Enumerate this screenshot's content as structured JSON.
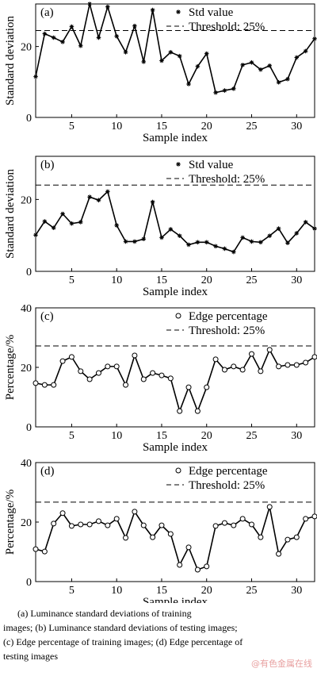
{
  "chart_data": [
    {
      "type": "line",
      "panel_label": "(a)",
      "xlabel": "Sample index",
      "ylabel": "Standard deviation",
      "x": [
        1,
        2,
        3,
        4,
        5,
        6,
        7,
        8,
        9,
        10,
        11,
        12,
        13,
        14,
        15,
        16,
        17,
        18,
        19,
        20,
        21,
        22,
        23,
        24,
        25,
        26,
        27,
        28,
        29,
        30,
        31,
        32
      ],
      "xlim": [
        1,
        32
      ],
      "xticks": [
        5,
        10,
        15,
        20,
        25,
        30
      ],
      "ylim": [
        0,
        32
      ],
      "yticks": [
        0,
        20
      ],
      "series": [
        {
          "name": "Std value",
          "color": "#000000",
          "marker": "asterisk",
          "values": [
            11.5,
            23.6,
            22.5,
            21.3,
            25.6,
            20.2,
            32,
            22.5,
            31.2,
            22.9,
            18.4,
            25.8,
            15.7,
            30.3,
            16,
            18.4,
            17.3,
            9.4,
            14.4,
            18,
            7,
            7.6,
            8.1,
            14.8,
            15.5,
            13.5,
            14.6,
            9.9,
            10.8,
            16.9,
            18.7,
            22.2
          ]
        }
      ],
      "threshold": {
        "name": "Threshold: 25%",
        "value": 24.5
      }
    },
    {
      "type": "line",
      "panel_label": "(b)",
      "xlabel": "Sample index",
      "ylabel": "Standard deviation",
      "x": [
        1,
        2,
        3,
        4,
        5,
        6,
        7,
        8,
        9,
        10,
        11,
        12,
        13,
        14,
        15,
        16,
        17,
        18,
        19,
        20,
        21,
        22,
        23,
        24,
        25,
        26,
        27,
        28,
        29,
        30,
        31,
        32
      ],
      "xlim": [
        1,
        32
      ],
      "xticks": [
        5,
        10,
        15,
        20,
        25,
        30
      ],
      "ylim": [
        0,
        32
      ],
      "yticks": [
        0,
        20
      ],
      "series": [
        {
          "name": "Std value",
          "color": "#000000",
          "marker": "asterisk",
          "values": [
            10.1,
            13.9,
            12.1,
            16,
            13.3,
            13.7,
            20.7,
            19.8,
            22.2,
            12.8,
            8.3,
            8.3,
            9,
            19.3,
            9.4,
            11.7,
            9.9,
            7.4,
            8.1,
            8.1,
            7,
            6.3,
            5.4,
            9.4,
            8.3,
            8.1,
            9.9,
            11.9,
            7.9,
            10.6,
            13.7,
            11.9
          ]
        }
      ],
      "threshold": {
        "name": "Threshold: 25%",
        "value": 24
      }
    },
    {
      "type": "line",
      "panel_label": "(c)",
      "xlabel": "Sample index",
      "ylabel": "Percentage/%",
      "x": [
        1,
        2,
        3,
        4,
        5,
        6,
        7,
        8,
        9,
        10,
        11,
        12,
        13,
        14,
        15,
        16,
        17,
        18,
        19,
        20,
        21,
        22,
        23,
        24,
        25,
        26,
        27,
        28,
        29,
        30,
        31,
        32
      ],
      "xlim": [
        1,
        32
      ],
      "xticks": [
        5,
        10,
        15,
        20,
        25,
        30
      ],
      "ylim": [
        0,
        40
      ],
      "yticks": [
        0,
        20,
        40
      ],
      "series": [
        {
          "name": "Edge percentage",
          "color": "#000000",
          "marker": "circle",
          "values": [
            14.7,
            14.1,
            14.1,
            22.1,
            23.5,
            18.7,
            16,
            18.1,
            20.3,
            20.3,
            14.1,
            24,
            16,
            18.1,
            17.3,
            16.3,
            5.3,
            13.3,
            5.3,
            13.3,
            22.7,
            19.2,
            20.3,
            19.2,
            24.5,
            18.7,
            25.9,
            20.3,
            20.8,
            20.8,
            21.6,
            23.5
          ]
        }
      ],
      "threshold": {
        "name": "Threshold: 25%",
        "value": 27.2
      }
    },
    {
      "type": "line",
      "panel_label": "(d)",
      "xlabel": "Sample index",
      "ylabel": "Percentage/%",
      "x": [
        1,
        2,
        3,
        4,
        5,
        6,
        7,
        8,
        9,
        10,
        11,
        12,
        13,
        14,
        15,
        16,
        17,
        18,
        19,
        20,
        21,
        22,
        23,
        24,
        25,
        26,
        27,
        28,
        29,
        30,
        31,
        32
      ],
      "xlim": [
        1,
        32
      ],
      "xticks": [
        5,
        10,
        15,
        20,
        25,
        30
      ],
      "ylim": [
        0,
        40
      ],
      "yticks": [
        0,
        20,
        40
      ],
      "series": [
        {
          "name": "Edge percentage",
          "color": "#000000",
          "marker": "circle",
          "values": [
            10.9,
            10.1,
            19.5,
            23,
            18.7,
            19.2,
            19.2,
            20.3,
            18.9,
            21.1,
            14.7,
            23.5,
            18.9,
            14.9,
            18.9,
            16,
            5.6,
            11.5,
            4,
            5.1,
            18.7,
            19.7,
            18.9,
            21.1,
            19.2,
            14.9,
            25.1,
            9.3,
            14.1,
            14.9,
            21.1,
            21.9
          ]
        }
      ],
      "threshold": {
        "name": "Threshold: 25%",
        "value": 26.7
      }
    }
  ],
  "caption": [
    "(a) Luminance standard deviations of training",
    "images; (b) Luminance standard deviations of testing images;",
    "(c) Edge percentage of training images; (d) Edge percentage of",
    "testing images"
  ],
  "watermark": "@有色金属在线"
}
